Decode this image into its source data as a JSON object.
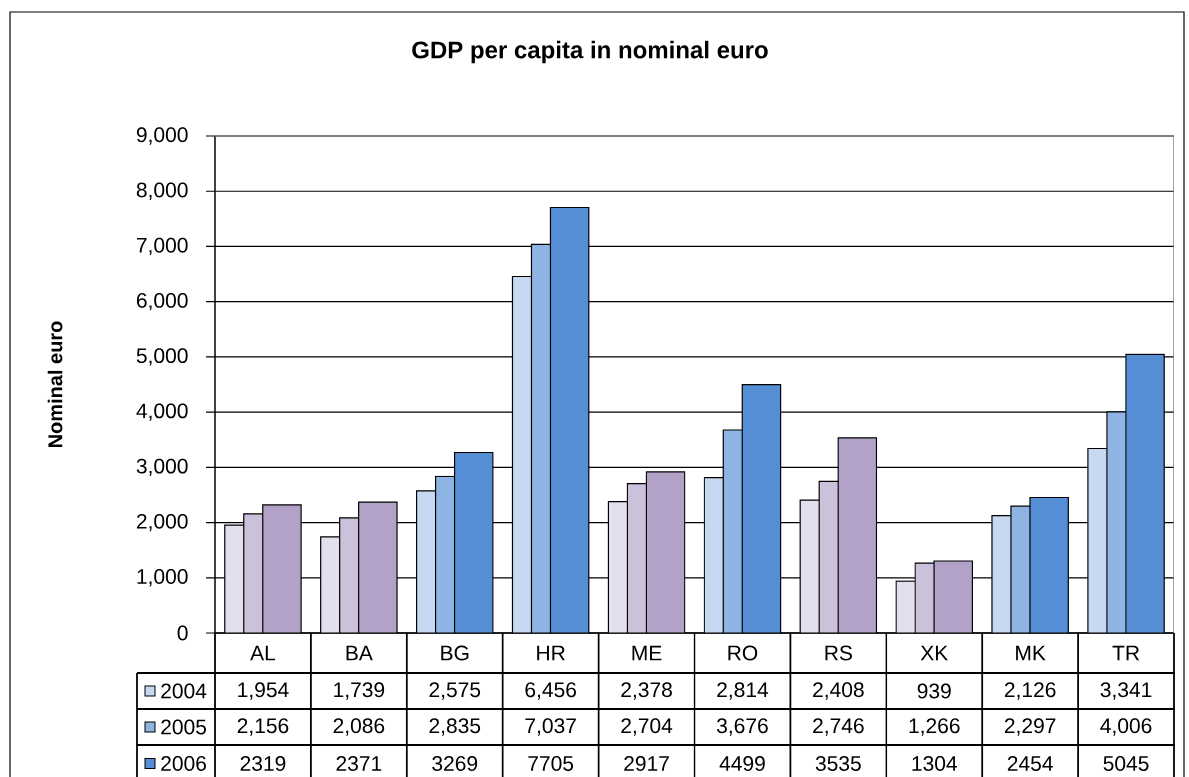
{
  "chart_data": {
    "type": "bar",
    "title": "GDP per capita in nominal euro",
    "ylabel": "Nominal euro",
    "categories": [
      "AL",
      "BA",
      "BG",
      "HR",
      "ME",
      "RO",
      "RS",
      "XK",
      "MK",
      "TR"
    ],
    "series": [
      {
        "name": "2004",
        "color": "#c6d9f1",
        "colors": [
          "#e3dfec",
          "#e3dfec",
          "#c6d9f1",
          "#c6d9f1",
          "#e3dfec",
          "#c6d9f1",
          "#e3dfec",
          "#e3dfec",
          "#c6d9f1",
          "#c6d9f1"
        ],
        "values": [
          1954,
          1739,
          2575,
          6456,
          2378,
          2814,
          2408,
          939,
          2126,
          3341
        ],
        "value_labels": [
          "1,954",
          "1,739",
          "2,575",
          "6,456",
          "2,378",
          "2,814",
          "2,408",
          "939",
          "2,126",
          "3,341"
        ]
      },
      {
        "name": "2005",
        "color": "#8eb4e3",
        "colors": [
          "#ccc1da",
          "#ccc1da",
          "#8eb4e3",
          "#8eb4e3",
          "#ccc1da",
          "#8eb4e3",
          "#ccc1da",
          "#ccc1da",
          "#8eb4e3",
          "#8eb4e3"
        ],
        "values": [
          2156,
          2086,
          2835,
          7037,
          2704,
          3676,
          2746,
          1266,
          2297,
          4006
        ],
        "value_labels": [
          "2,156",
          "2,086",
          "2,835",
          "7,037",
          "2,704",
          "3,676",
          "2,746",
          "1,266",
          "2,297",
          "4,006"
        ]
      },
      {
        "name": "2006",
        "color": "#558ed5",
        "colors": [
          "#b2a2c7",
          "#b2a2c7",
          "#558ed5",
          "#558ed5",
          "#b2a2c7",
          "#558ed5",
          "#b2a2c7",
          "#b2a2c7",
          "#558ed5",
          "#558ed5"
        ],
        "values": [
          2319,
          2371,
          3269,
          7705,
          2917,
          4499,
          3535,
          1304,
          2454,
          5045
        ],
        "value_labels": [
          "2319",
          "2371",
          "3269",
          "7705",
          "2917",
          "4499",
          "3535",
          "1304",
          "2454",
          "5045"
        ]
      }
    ],
    "ylim": [
      0,
      9000
    ],
    "yticks": [
      0,
      {
        "value": 1000,
        "label": "1,000"
      },
      {
        "value": 2000,
        "label": "2,000"
      },
      {
        "value": 3000,
        "label": "3,000"
      },
      {
        "value": 4000,
        "label": "4,000"
      },
      {
        "value": 5000,
        "label": "5,000"
      },
      {
        "value": 6000,
        "label": "6,000"
      },
      {
        "value": 7000,
        "label": "7,000"
      },
      {
        "value": 8000,
        "label": "8,000"
      },
      {
        "value": 9000,
        "label": "9,000"
      }
    ],
    "grid": "y",
    "legend": "bottom left"
  }
}
